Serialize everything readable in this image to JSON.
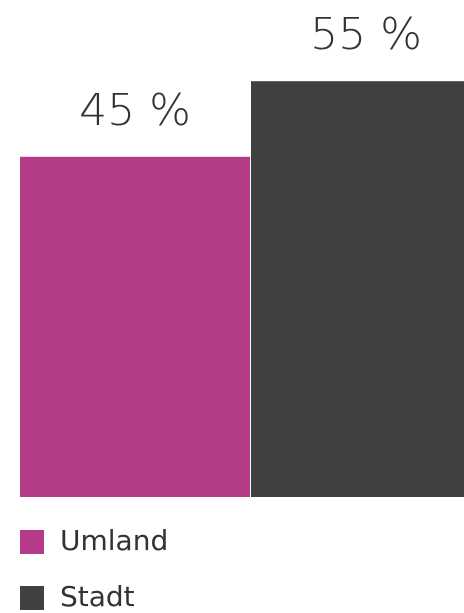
{
  "chart_data": {
    "type": "bar",
    "series": [
      {
        "name": "Umland",
        "color": "#b33b87",
        "values": [
          45
        ],
        "value_labels": [
          "45 %"
        ]
      },
      {
        "name": "Stadt",
        "color": "#404040",
        "values": [
          55
        ],
        "value_labels": [
          "55 %"
        ]
      }
    ]
  }
}
